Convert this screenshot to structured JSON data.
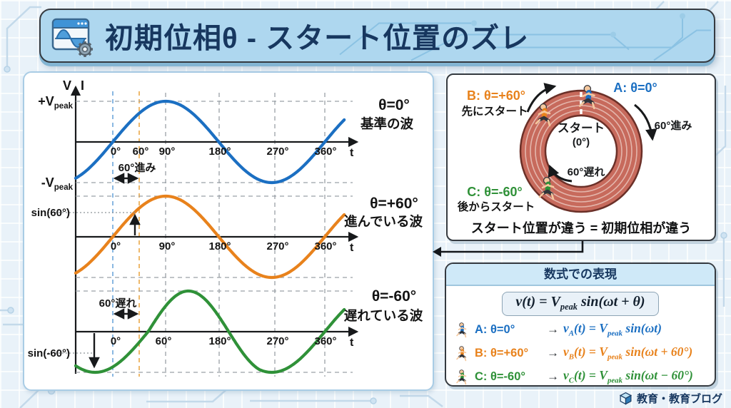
{
  "header": {
    "title": "初期位相θ - スタート位置のズレ"
  },
  "theme": {
    "blue": "#1b6fc2",
    "orange": "#e8821c",
    "green": "#2f9138",
    "navy": "#17375f",
    "track_fill": "#c76a5c",
    "track_line": "#6b3028",
    "header_bg": "#aed7ef"
  },
  "graphs": {
    "v_label": "V",
    "i_label": "I",
    "pos_peak": {
      "main": "+V",
      "sub": "peak"
    },
    "neg_peak": {
      "main": "-V",
      "sub": "peak"
    },
    "panels": [
      {
        "theta": "θ=0°",
        "desc": "基準の波",
        "t": "t",
        "ticks": [
          "0°",
          "60°",
          "90°",
          "180°",
          "270°",
          "360°"
        ],
        "annotation": "60°進み"
      },
      {
        "theta": "θ=+60°",
        "desc": "進んでいる波",
        "t": "t",
        "ticks": [
          "0°",
          "90°",
          "180°",
          "270°",
          "360°"
        ],
        "value_label": "sin(60°)"
      },
      {
        "theta": "θ=-60°",
        "desc": "遅れている波",
        "t": "t",
        "ticks": [
          "0°",
          "60°",
          "180°",
          "270°",
          "360°"
        ],
        "annotation": "60°遅れ",
        "value_label": "sin(-60°)"
      }
    ]
  },
  "track": {
    "runner_a": {
      "label": "A: θ=0°"
    },
    "runner_b": {
      "label": "B: θ=+60°",
      "sub": "先にスタート"
    },
    "runner_c": {
      "label": "C: θ=-60°",
      "sub": "後からスタート"
    },
    "center_line1": "スタート",
    "center_line2": "(0°)",
    "advance_label": "60°進み",
    "delay_label": "60°遅れ",
    "caption": "スタート位置が違う = 初期位相が違う"
  },
  "formula": {
    "heading": "数式での表現",
    "general": {
      "v": "v(t) = V",
      "sub": "peak",
      "rest": " sin(ωt + θ)"
    },
    "rows": [
      {
        "label": "A: θ=0°",
        "arrow": "→",
        "v": "v",
        "sub": "A",
        "mid": "(t) = V",
        "peaksub": "peak",
        "rest": " sin(ωt)"
      },
      {
        "label": "B: θ=+60°",
        "arrow": "→",
        "v": "v",
        "sub": "B",
        "mid": "(t) = V",
        "peaksub": "peak",
        "rest": " sin(ωt + 60°)"
      },
      {
        "label": "C: θ=-60°",
        "arrow": "→",
        "v": "v",
        "sub": "C",
        "mid": "(t) = V",
        "peaksub": "peak",
        "rest": " sin(ωt − 60°)"
      }
    ]
  },
  "footer": {
    "brand": "教育・教育ブログ"
  },
  "chart_data": {
    "type": "line",
    "title": "初期位相θ - スタート位置のズレ",
    "x_axis": {
      "label": "t",
      "unit": "deg",
      "ticks_deg": [
        0,
        60,
        90,
        180,
        270,
        360
      ],
      "range_deg": [
        -63,
        393
      ]
    },
    "y_axis": {
      "left_label": "V",
      "right_label": "I",
      "peak_labels": [
        "+Vpeak",
        "-Vpeak"
      ],
      "amplitude": 1
    },
    "series": [
      {
        "name": "A",
        "theta_deg": 0,
        "label": "θ=0°",
        "description": "基準の波",
        "equation": "v_A(t) = V_peak sin(ωt)",
        "color": "#1b6fc2",
        "draw_shift_deg": 0
      },
      {
        "name": "B",
        "theta_deg": 60,
        "label": "θ=+60°",
        "description": "進んでいる波",
        "equation": "v_B(t) = V_peak sin(ωt + 60°)",
        "color": "#e8821c",
        "draw_shift_deg": 0
      },
      {
        "name": "C",
        "theta_deg": -60,
        "label": "θ=-60°",
        "description": "遅れている波",
        "equation": "v_C(t) = V_peak sin(ωt − 60°)",
        "color": "#2f9138",
        "draw_shift_deg": -60
      }
    ],
    "annotations": [
      "60°進み",
      "60°遅れ",
      "sin(60°)",
      "sin(-60°)"
    ],
    "legend_position": "right-of-each-wave",
    "grid": "dashed"
  }
}
